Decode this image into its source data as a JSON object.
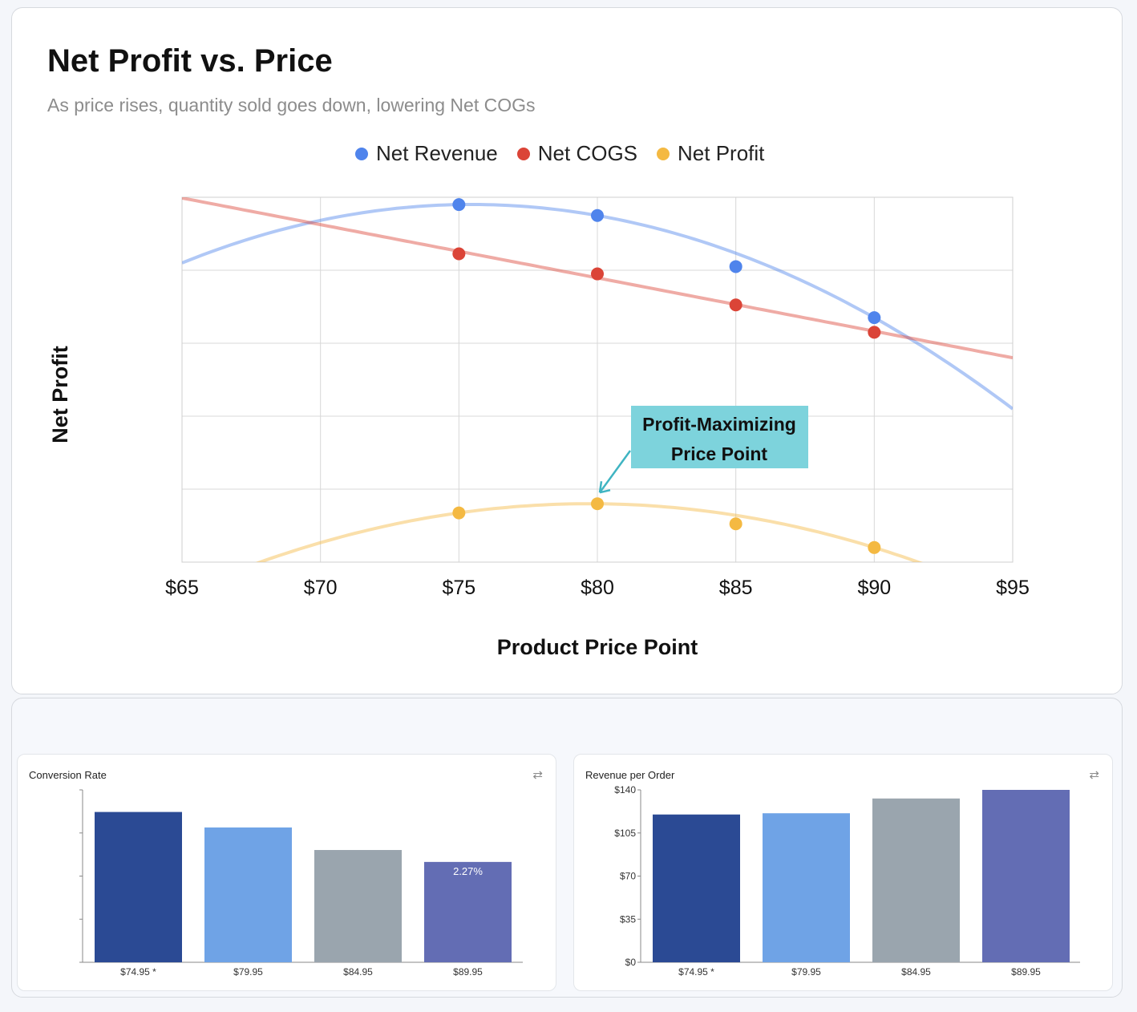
{
  "main_chart": {
    "title": "Net Profit vs. Price",
    "subtitle": "As price rises, quantity sold goes down, lowering Net COGs",
    "legend": [
      {
        "label": "Net Revenue",
        "color": "#4f84ec"
      },
      {
        "label": "Net COGS",
        "color": "#db4437"
      },
      {
        "label": "Net Profit",
        "color": "#f4b942"
      }
    ],
    "annotation": {
      "line1": "Profit-Maximizing",
      "line2": "Price Point",
      "color": "#7dd3dc"
    }
  },
  "mini_panels": {
    "conversion": {
      "title": "Conversion Rate",
      "icon": "swap-arrows-icon"
    },
    "revenue": {
      "title": "Revenue per Order",
      "icon": "swap-arrows-icon"
    }
  },
  "chart_data": [
    {
      "type": "line",
      "title": "Net Profit vs. Price",
      "subtitle": "As price rises, quantity sold goes down, lowering Net COGs",
      "xlabel": "Product Price Point",
      "ylabel": "Net Profit",
      "xlim": [
        65,
        95
      ],
      "x_ticks": [
        "$65",
        "$70",
        "$75",
        "$80",
        "$85",
        "$90",
        "$95"
      ],
      "ylim": [
        0,
        100
      ],
      "y_tick_labels_shown": false,
      "grid": true,
      "legend_position": "top",
      "series": [
        {
          "name": "Net Revenue",
          "color": "#4f84ec",
          "x": [
            75,
            80,
            85,
            90
          ],
          "y": [
            98,
            95,
            81,
            67
          ]
        },
        {
          "name": "Net COGS",
          "color": "#db4437",
          "x": [
            75,
            80,
            85,
            90
          ],
          "y": [
            84.5,
            79,
            70.5,
            63
          ]
        },
        {
          "name": "Net Profit",
          "color": "#f4b942",
          "x": [
            75,
            80,
            85,
            90
          ],
          "y": [
            13.5,
            16,
            10.5,
            4
          ]
        }
      ],
      "annotations": [
        {
          "text": "Profit-Maximizing Price Point",
          "x": 80,
          "y": 16
        }
      ]
    },
    {
      "type": "bar",
      "title": "Conversion Rate",
      "categories": [
        "$74.95 *",
        "$79.95",
        "$84.95",
        "$89.95"
      ],
      "values": [
        3.4,
        3.05,
        2.54,
        2.27
      ],
      "ylim": [
        0,
        3.9
      ],
      "y_tick_labels_shown": false,
      "data_labels": [
        "",
        "",
        "",
        "2.27%"
      ],
      "colors": [
        "#2b4a94",
        "#6fa3e6",
        "#9aa5ae",
        "#636db4"
      ]
    },
    {
      "type": "bar",
      "title": "Revenue per Order",
      "categories": [
        "$74.95 *",
        "$79.95",
        "$84.95",
        "$89.95"
      ],
      "values": [
        120,
        121,
        133,
        140
      ],
      "ylim": [
        0,
        140
      ],
      "y_ticks": [
        "$0",
        "$35",
        "$70",
        "$105",
        "$140"
      ],
      "colors": [
        "#2b4a94",
        "#6fa3e6",
        "#9aa5ae",
        "#636db4"
      ]
    }
  ]
}
